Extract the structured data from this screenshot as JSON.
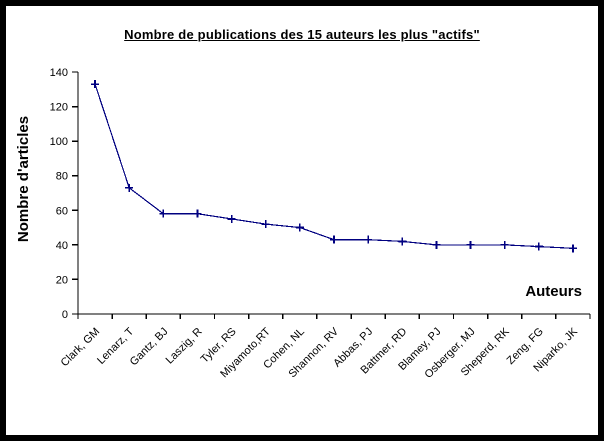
{
  "frame": {
    "border_color": "#000000",
    "background": "#ffffff"
  },
  "chart_data": {
    "type": "line",
    "title": "Nombre de publications des 15 auteurs les plus \"actifs\"",
    "xlabel": "Auteurs",
    "ylabel": "Nombre d'articles",
    "categories": [
      "Clark, GM",
      "Lenarz, T",
      "Gantz, BJ",
      "Laszig, R",
      "Tyler, RS",
      "Miyamoto,RT",
      "Cohen, NL",
      "Shannon, RV",
      "Abbas, PJ",
      "Battmer, RD",
      "Blamey, PJ",
      "Osberger, MJ",
      "Sheperd, RK",
      "Zeng, FG",
      "Niparko, JK"
    ],
    "values": [
      133,
      73,
      58,
      58,
      55,
      52,
      50,
      43,
      43,
      42,
      40,
      40,
      40,
      39,
      38
    ],
    "ylim": [
      0,
      140
    ],
    "yticks": [
      0,
      20,
      40,
      60,
      80,
      100,
      120,
      140
    ],
    "line_color": "#000080",
    "marker": "plus-cross",
    "axis_color": "#000000",
    "grid": false,
    "legend": "none"
  }
}
